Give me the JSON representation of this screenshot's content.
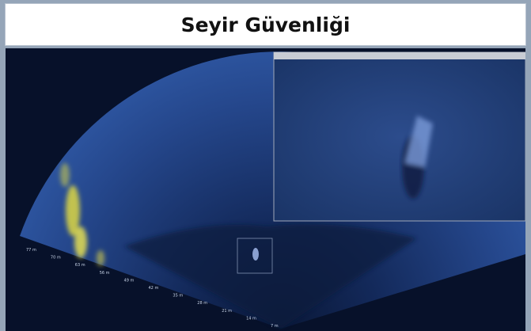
{
  "header": {
    "title": "Seyir Güvenliği"
  },
  "sonar": {
    "range_labels": [
      "77 m",
      "70 m",
      "63 m",
      "56 m",
      "49 m",
      "42 m",
      "35 m",
      "28 m",
      "21 m",
      "14 m",
      "7 m"
    ]
  }
}
